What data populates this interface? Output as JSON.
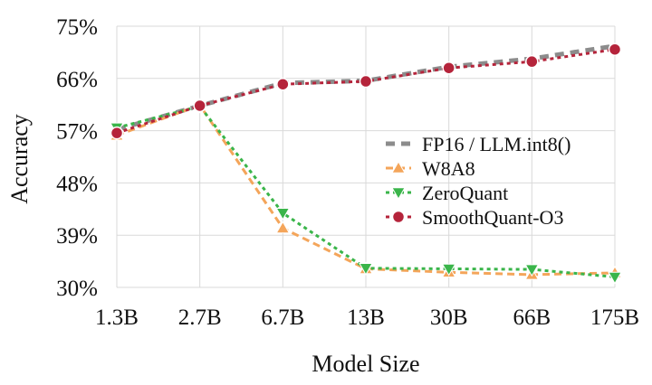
{
  "chart_data": {
    "type": "line",
    "categories": [
      "1.3B",
      "2.7B",
      "6.7B",
      "13B",
      "30B",
      "66B",
      "175B"
    ],
    "ylim": [
      30,
      75
    ],
    "yticks": [
      30,
      39,
      48,
      57,
      66,
      75
    ],
    "ytick_labels": [
      "30%",
      "39%",
      "48%",
      "57%",
      "66%",
      "75%"
    ],
    "xlabel": "Model Size",
    "ylabel": "Accuracy",
    "grid": true,
    "legend_position": "center-right",
    "series": [
      {
        "name": "FP16 / LLM.int8()",
        "values": [
          57.2,
          61.3,
          65.2,
          65.6,
          68.0,
          69.4,
          71.6
        ],
        "color": "#8c8c8c",
        "marker": "none",
        "dash": "dashed-thick"
      },
      {
        "name": "W8A8",
        "values": [
          56.2,
          61.4,
          40.2,
          33.2,
          32.6,
          32.2,
          32.5
        ],
        "color": "#f4a55a",
        "marker": "triangle-up",
        "dash": "dashed"
      },
      {
        "name": "ZeroQuant",
        "values": [
          57.5,
          61.2,
          42.8,
          33.3,
          33.2,
          33.1,
          31.8
        ],
        "color": "#3ab54a",
        "marker": "triangle-down",
        "dash": "dotted"
      },
      {
        "name": "SmoothQuant-O3",
        "values": [
          56.6,
          61.3,
          65.0,
          65.5,
          67.8,
          68.9,
          71.0
        ],
        "color": "#b5243b",
        "marker": "circle",
        "dash": "dotted"
      }
    ]
  }
}
